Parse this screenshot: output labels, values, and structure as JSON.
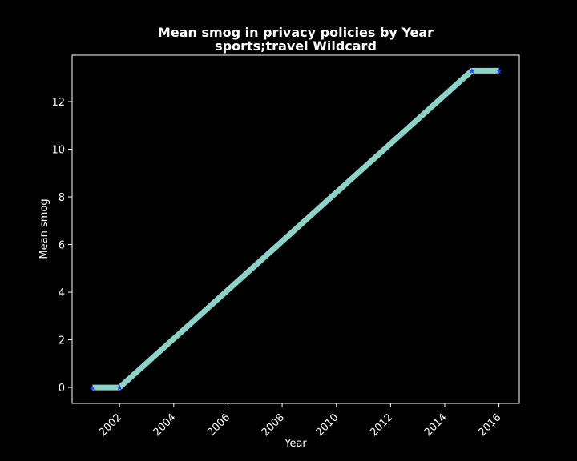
{
  "chart_data": {
    "type": "line",
    "title": "Mean smog in privacy policies by Year",
    "subtitle": "sports;travel Wildcard",
    "xlabel": "Year",
    "ylabel": "Mean smog",
    "xlim": [
      2000.25,
      2016.75
    ],
    "ylim": [
      -0.67,
      13.95
    ],
    "xticks": [
      2002,
      2004,
      2006,
      2008,
      2010,
      2012,
      2014,
      2016
    ],
    "yticks": [
      0,
      2,
      4,
      6,
      8,
      10,
      12
    ],
    "grid": false,
    "series": [
      {
        "x": [
          2001,
          2002,
          2015,
          2016
        ],
        "y": [
          0,
          0,
          13.3,
          13.3
        ]
      }
    ],
    "colors": {
      "background": "#000000",
      "axes": "#ffffff",
      "line": "#8dd3c7",
      "marker": "#1f3fff"
    }
  }
}
